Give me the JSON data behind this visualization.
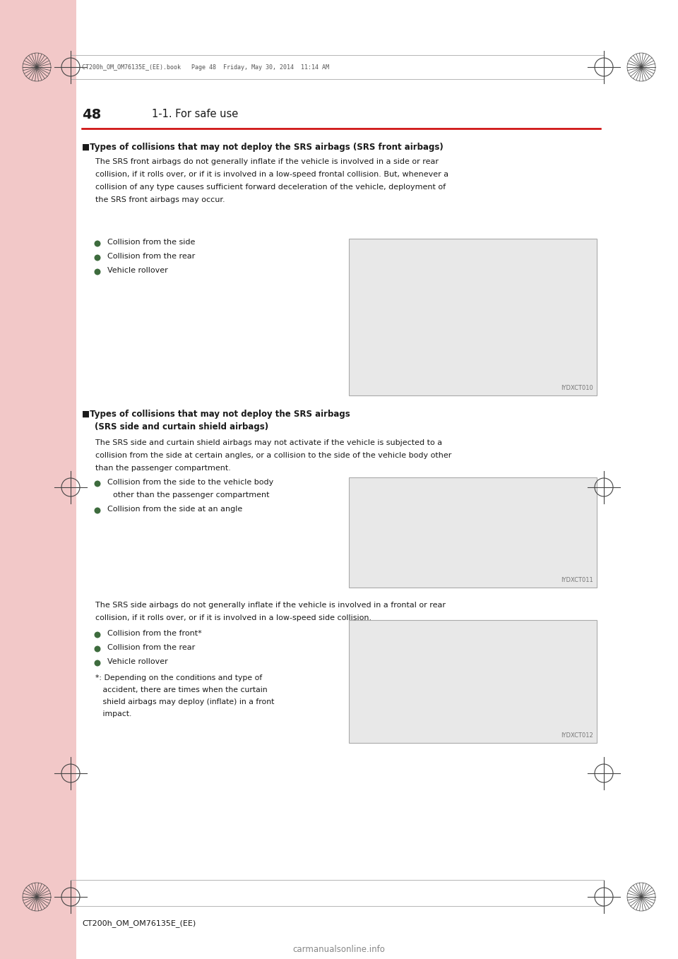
{
  "page_bg": "#ffffff",
  "left_bar_color": "#f2c8c8",
  "red_line_color": "#cc0000",
  "page_number": "48",
  "header_section": "1-1. For safe use",
  "file_line": "CT200h_OM_OM76135E_(EE).book   Page 48  Friday, May 30, 2014  11:14 AM",
  "footer_text": "CT200h_OM_OM76135E_(EE)",
  "section1_heading": "■Types of collisions that may not deploy the SRS airbags (SRS front airbags)",
  "section1_body1": "The SRS front airbags do not generally inflate if the vehicle is involved in a side or rear",
  "section1_body2": "collision, if it rolls over, or if it is involved in a low-speed frontal collision. But, whenever a",
  "section1_body3": "collision of any type causes sufficient forward deceleration of the vehicle, deployment of",
  "section1_body4": "the SRS front airbags may occur.",
  "section1_bullets": [
    "Collision from the side",
    "Collision from the rear",
    "Vehicle rollover"
  ],
  "section1_img_label": "IYDXCT010",
  "section2_heading_line1": "■Types of collisions that may not deploy the SRS airbags",
  "section2_heading_line2": "(SRS side and curtain shield airbags)",
  "section2_body1": "The SRS side and curtain shield airbags may not activate if the vehicle is subjected to a",
  "section2_body2": "collision from the side at certain angles, or a collision to the side of the vehicle body other",
  "section2_body3": "than the passenger compartment.",
  "section2_bullet1_line1": "Collision from the side to the vehicle body",
  "section2_bullet1_line2": "other than the passenger compartment",
  "section2_bullet2": "Collision from the side at an angle",
  "section2_img_label": "IYDXCT011",
  "section3_body1": "The SRS side airbags do not generally inflate if the vehicle is involved in a frontal or rear",
  "section3_body2": "collision, if it rolls over, or if it is involved in a low-speed side collision.",
  "section3_bullets": [
    "Collision from the front*",
    "Collision from the rear",
    "Vehicle rollover"
  ],
  "section3_note_line1": "*: Depending on the conditions and type of",
  "section3_note_line2": "   accident, there are times when the curtain",
  "section3_note_line3": "   shield airbags may deploy (inflate) in a front",
  "section3_note_line4": "   impact.",
  "section3_img_label": "IYDXCT012",
  "website": "carmanualsonline.info",
  "text_color": "#1a1a1a",
  "bullet_color": "#4a7a4a",
  "heading_color": "#1a1a1a",
  "gray_text": "#555555"
}
